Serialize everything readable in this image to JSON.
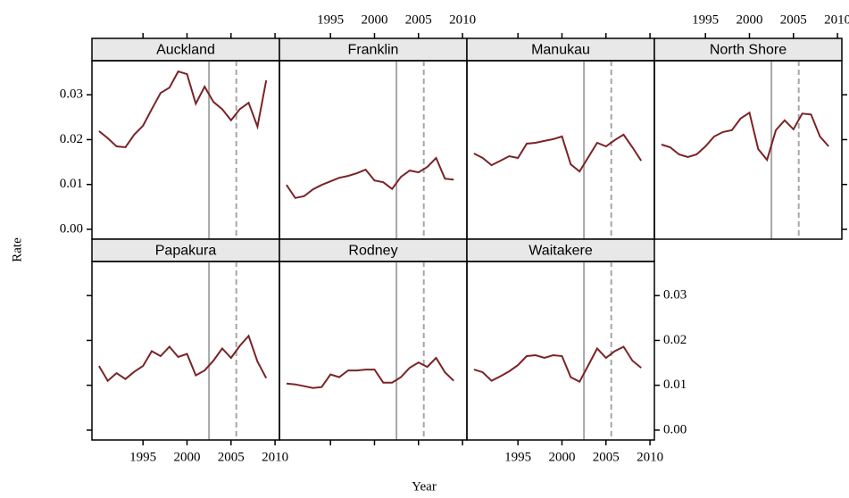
{
  "chart_data": {
    "type": "line",
    "x_label": "Year",
    "y_label": "Rate",
    "x": [
      1990,
      1991,
      1992,
      1993,
      1994,
      1995,
      1996,
      1997,
      1998,
      1999,
      2000,
      2001,
      2002,
      2003,
      2004,
      2005,
      2006,
      2007,
      2008,
      2009
    ],
    "xlim": [
      1989.2,
      2010.5
    ],
    "xticks": [
      1995,
      2000,
      2005,
      2010
    ],
    "ylim": [
      -0.0022,
      0.0376
    ],
    "yticks": [
      {
        "value": 0,
        "label": "0.00"
      },
      0.01,
      0.02,
      0.03
    ],
    "color": "#7b2326",
    "reference_lines": [
      {
        "value": 2002.5,
        "style": "solid",
        "color": "#a6a6a6"
      },
      {
        "value": 2005.6,
        "style": "dashed",
        "color": "#a6a6a6"
      }
    ],
    "series": [
      {
        "name": "Auckland",
        "values": [
          0.0219,
          0.0203,
          0.0185,
          0.0183,
          0.0211,
          0.0231,
          0.0268,
          0.0304,
          0.0316,
          0.0352,
          0.0346,
          0.028,
          0.0318,
          0.0284,
          0.0268,
          0.0243,
          0.0268,
          0.0282,
          0.0229,
          0.0332
        ]
      },
      {
        "name": "Franklin",
        "values": [
          0.0099,
          0.007,
          0.0074,
          0.0089,
          0.0099,
          0.0107,
          0.0115,
          0.0119,
          0.0125,
          0.0133,
          0.0109,
          0.0105,
          0.009,
          0.0117,
          0.0131,
          0.0127,
          0.0139,
          0.0159,
          0.0113,
          0.0111
        ]
      },
      {
        "name": "Manukau",
        "values": [
          0.0169,
          0.0159,
          0.0143,
          0.0153,
          0.0163,
          0.0159,
          0.0191,
          0.0193,
          0.0197,
          0.0201,
          0.0207,
          0.0145,
          0.0129,
          0.0161,
          0.0193,
          0.0185,
          0.0199,
          0.0211,
          0.0183,
          0.0153
        ]
      },
      {
        "name": "North Shore",
        "values": [
          0.0189,
          0.0183,
          0.0167,
          0.0161,
          0.0167,
          0.0185,
          0.0207,
          0.0217,
          0.0221,
          0.0247,
          0.026,
          0.0179,
          0.0155,
          0.0221,
          0.0243,
          0.0223,
          0.0258,
          0.0256,
          0.0207,
          0.0185
        ]
      },
      {
        "name": "Papakura",
        "values": [
          0.0143,
          0.011,
          0.0127,
          0.0114,
          0.013,
          0.0143,
          0.0176,
          0.0165,
          0.0186,
          0.0163,
          0.017,
          0.0122,
          0.0133,
          0.0155,
          0.0182,
          0.0161,
          0.0188,
          0.021,
          0.0153,
          0.0116
        ]
      },
      {
        "name": "Rodney",
        "values": [
          0.0104,
          0.0102,
          0.0098,
          0.0094,
          0.0096,
          0.0124,
          0.0118,
          0.0133,
          0.0133,
          0.0135,
          0.0135,
          0.0106,
          0.0106,
          0.0118,
          0.0139,
          0.0151,
          0.0141,
          0.0161,
          0.0129,
          0.011
        ]
      },
      {
        "name": "Waitakere",
        "values": [
          0.0135,
          0.0129,
          0.011,
          0.012,
          0.0131,
          0.0145,
          0.0165,
          0.0167,
          0.0161,
          0.0167,
          0.0165,
          0.0118,
          0.0108,
          0.0145,
          0.0182,
          0.0161,
          0.0176,
          0.0186,
          0.0155,
          0.0139
        ]
      }
    ]
  }
}
